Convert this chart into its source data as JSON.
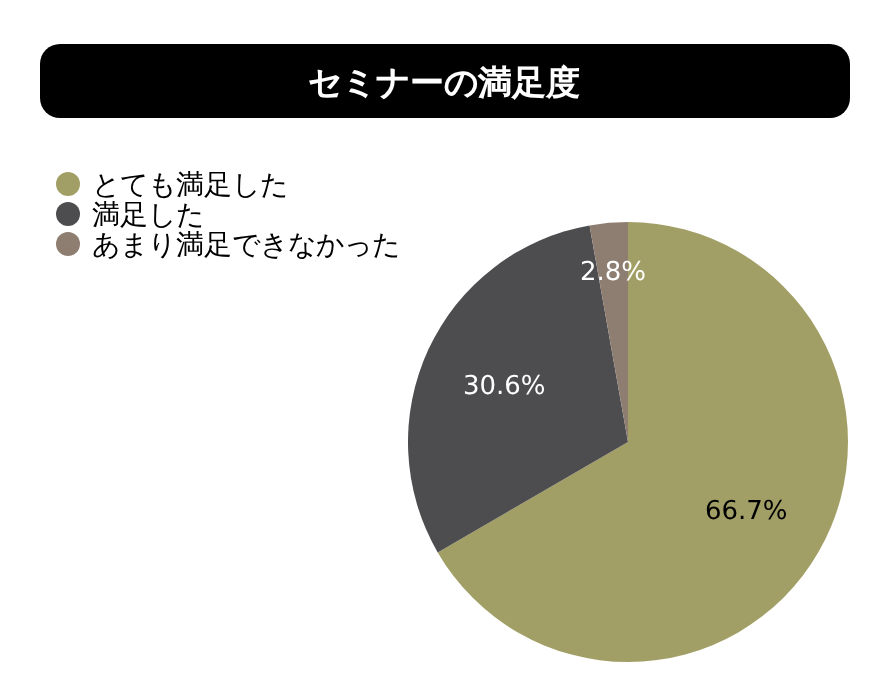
{
  "chart_data": {
    "type": "pie",
    "title": "セミナーの満足度",
    "categories": [
      "とても満足した",
      "満足した",
      "あまり満足できなかった"
    ],
    "values": [
      66.7,
      30.6,
      2.8
    ],
    "colors": [
      "#a29f66",
      "#4d4d4f",
      "#8e7e72"
    ],
    "value_labels": [
      "66.7%",
      "30.6%",
      "2.8%"
    ],
    "legend": "top left"
  }
}
